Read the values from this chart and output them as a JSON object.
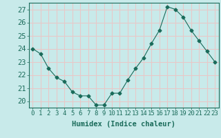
{
  "x": [
    0,
    1,
    2,
    3,
    4,
    5,
    6,
    7,
    8,
    9,
    10,
    11,
    12,
    13,
    14,
    15,
    16,
    17,
    18,
    19,
    20,
    21,
    22,
    23
  ],
  "y": [
    24.0,
    23.6,
    22.5,
    21.8,
    21.5,
    20.7,
    20.4,
    20.4,
    19.7,
    19.7,
    20.6,
    20.6,
    21.6,
    22.5,
    23.3,
    24.4,
    25.4,
    27.2,
    27.0,
    26.4,
    25.4,
    24.6,
    23.8,
    23.0
  ],
  "line_color": "#1a6b5a",
  "marker": "D",
  "marker_size": 2.5,
  "bg_color": "#c8eaea",
  "grid_color": "#e8c8c8",
  "xlabel": "Humidex (Indice chaleur)",
  "ylim": [
    19.5,
    27.5
  ],
  "yticks": [
    20,
    21,
    22,
    23,
    24,
    25,
    26,
    27
  ],
  "xtick_labels": [
    "0",
    "1",
    "2",
    "3",
    "4",
    "5",
    "6",
    "7",
    "8",
    "9",
    "10",
    "11",
    "12",
    "13",
    "14",
    "15",
    "16",
    "17",
    "18",
    "19",
    "20",
    "21",
    "22",
    "23"
  ],
  "tick_color": "#1a6b5a",
  "label_color": "#1a6b5a",
  "label_fontsize": 7.5,
  "tick_fontsize": 6.5,
  "ytick_fontsize": 7.5,
  "spine_color": "#1a6b5a"
}
